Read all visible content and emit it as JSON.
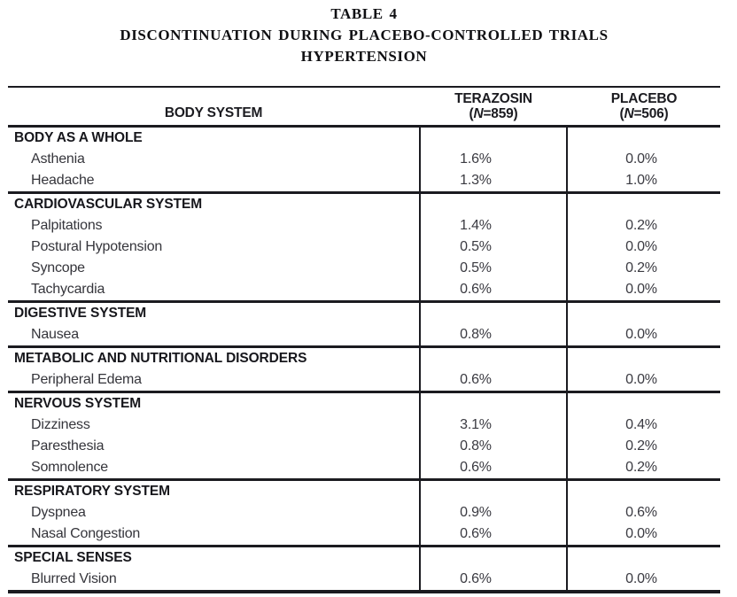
{
  "title": {
    "line1": "TABLE 4",
    "line2": "DISCONTINUATION DURING PLACEBO-CONTROLLED TRIALS",
    "line3": "HYPERTENSION"
  },
  "colors": {
    "ink": "#1b1b20",
    "body_text": "#35353b",
    "background": "#ffffff"
  },
  "table": {
    "header": {
      "col1": "BODY SYSTEM",
      "terazosin": {
        "name": "TERAZOSIN",
        "open": "(",
        "n": "N",
        "rest": "=859)"
      },
      "placebo": {
        "name": "PLACEBO",
        "open": "(",
        "n": "N",
        "rest": "=506)"
      }
    },
    "sections": [
      {
        "name": "BODY AS A WHOLE",
        "rows": [
          {
            "label": "Asthenia",
            "terazosin": "1.6%",
            "placebo": "0.0%"
          },
          {
            "label": "Headache",
            "terazosin": "1.3%",
            "placebo": "1.0%"
          }
        ]
      },
      {
        "name": "CARDIOVASCULAR SYSTEM",
        "rows": [
          {
            "label": "Palpitations",
            "terazosin": "1.4%",
            "placebo": "0.2%"
          },
          {
            "label": "Postural Hypotension",
            "terazosin": "0.5%",
            "placebo": "0.0%"
          },
          {
            "label": "Syncope",
            "terazosin": "0.5%",
            "placebo": "0.2%"
          },
          {
            "label": "Tachycardia",
            "terazosin": "0.6%",
            "placebo": "0.0%"
          }
        ]
      },
      {
        "name": "DIGESTIVE SYSTEM",
        "rows": [
          {
            "label": "Nausea",
            "terazosin": "0.8%",
            "placebo": "0.0%"
          }
        ]
      },
      {
        "name": "METABOLIC AND NUTRITIONAL DISORDERS",
        "rows": [
          {
            "label": "Peripheral Edema",
            "terazosin": "0.6%",
            "placebo": "0.0%"
          }
        ]
      },
      {
        "name": "NERVOUS SYSTEM",
        "rows": [
          {
            "label": "Dizziness",
            "terazosin": "3.1%",
            "placebo": "0.4%"
          },
          {
            "label": "Paresthesia",
            "terazosin": "0.8%",
            "placebo": "0.2%"
          },
          {
            "label": "Somnolence",
            "terazosin": "0.6%",
            "placebo": "0.2%"
          }
        ]
      },
      {
        "name": "RESPIRATORY SYSTEM",
        "rows": [
          {
            "label": "Dyspnea",
            "terazosin": "0.9%",
            "placebo": "0.6%"
          },
          {
            "label": "Nasal Congestion",
            "terazosin": "0.6%",
            "placebo": "0.0%"
          }
        ]
      },
      {
        "name": "SPECIAL SENSES",
        "rows": [
          {
            "label": "Blurred Vision",
            "terazosin": "0.6%",
            "placebo": "0.0%"
          }
        ]
      }
    ]
  }
}
